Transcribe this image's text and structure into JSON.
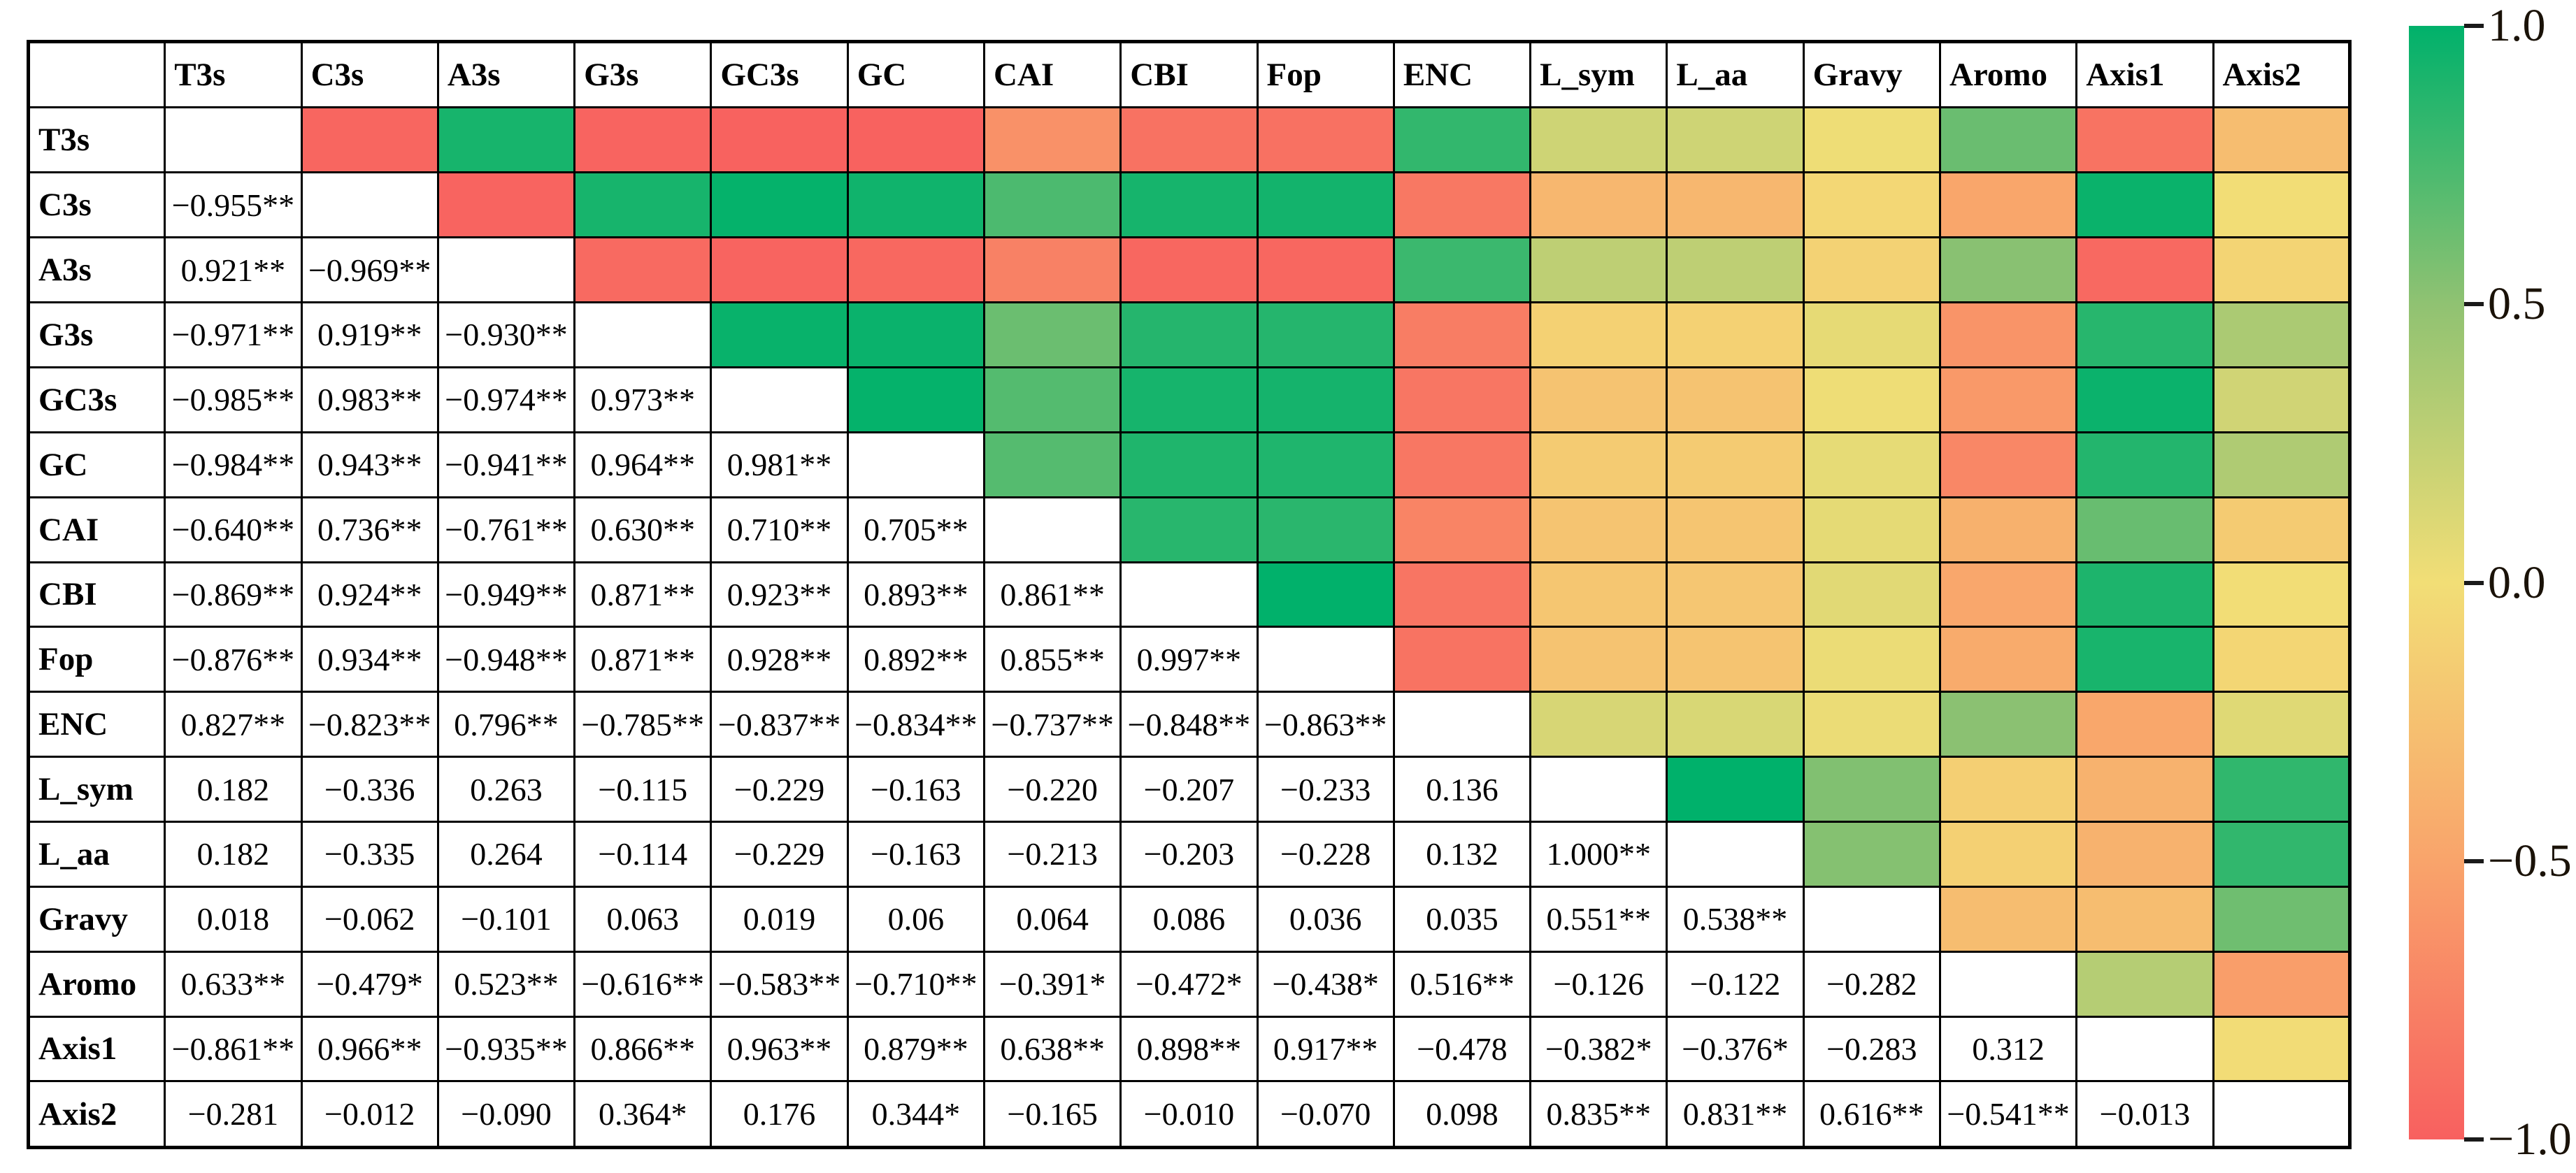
{
  "figure": {
    "background": "#ffffff"
  },
  "chart_data": {
    "type": "heatmap",
    "title": "",
    "description_layout": "correlation matrix: lower triangle numeric labels, upper triangle color-coded, colorbar on right",
    "variables": [
      "T3s",
      "C3s",
      "A3s",
      "G3s",
      "GC3s",
      "GC",
      "CAI",
      "CBI",
      "Fop",
      "ENC",
      "L_sym",
      "L_aa",
      "Gravy",
      "Aromo",
      "Axis1",
      "Axis2"
    ],
    "lower_triangle": [
      [],
      [
        "−0.955**"
      ],
      [
        "0.921**",
        "−0.969**"
      ],
      [
        "−0.971**",
        "0.919**",
        "−0.930**"
      ],
      [
        "−0.985**",
        "0.983**",
        "−0.974**",
        "0.973**"
      ],
      [
        "−0.984**",
        "0.943**",
        "−0.941**",
        "0.964**",
        "0.981**"
      ],
      [
        "−0.640**",
        "0.736**",
        "−0.761**",
        "0.630**",
        "0.710**",
        "0.705**"
      ],
      [
        "−0.869**",
        "0.924**",
        "−0.949**",
        "0.871**",
        "0.923**",
        "0.893**",
        "0.861**"
      ],
      [
        "−0.876**",
        "0.934**",
        "−0.948**",
        "0.871**",
        "0.928**",
        "0.892**",
        "0.855**",
        "0.997**"
      ],
      [
        "0.827**",
        "−0.823**",
        "0.796**",
        "−0.785**",
        "−0.837**",
        "−0.834**",
        "−0.737**",
        "−0.848**",
        "−0.863**"
      ],
      [
        "0.182",
        "−0.336",
        "0.263",
        "−0.115",
        "−0.229",
        "−0.163",
        "−0.220",
        "−0.207",
        "−0.233",
        "0.136"
      ],
      [
        "0.182",
        "−0.335",
        "0.264",
        "−0.114",
        "−0.229",
        "−0.163",
        "−0.213",
        "−0.203",
        "−0.228",
        "0.132",
        "1.000**"
      ],
      [
        "0.018",
        "−0.062",
        "−0.101",
        "0.063",
        "0.019",
        "0.06",
        "0.064",
        "0.086",
        "0.036",
        "0.035",
        "0.551**",
        "0.538**"
      ],
      [
        "0.633**",
        "−0.479*",
        "0.523**",
        "−0.616**",
        "−0.583**",
        "−0.710**",
        "−0.391*",
        "−0.472*",
        "−0.438*",
        "0.516**",
        "−0.126",
        "−0.122",
        "−0.282"
      ],
      [
        "−0.861**",
        "0.966**",
        "−0.935**",
        "0.866**",
        "0.963**",
        "0.879**",
        "0.638**",
        "0.898**",
        "0.917**",
        "−0.478",
        "−0.382*",
        "−0.376*",
        "−0.283",
        "0.312"
      ],
      [
        "−0.281",
        "−0.012",
        "−0.090",
        "0.364*",
        "0.176",
        "0.344*",
        "−0.165",
        "−0.010",
        "−0.070",
        "0.098",
        "0.835**",
        "0.831**",
        "0.616**",
        "−0.541**",
        "−0.013"
      ]
    ],
    "colorbar": {
      "min": -1,
      "max": 1,
      "ticks": [
        "1.0",
        "0.5",
        "0.0",
        "−0.5",
        "−1.0"
      ],
      "tick_values": [
        1.0,
        0.5,
        0.0,
        -0.5,
        -1.0
      ],
      "gradient_stops": [
        {
          "value": 1.0,
          "color": "#00B16B"
        },
        {
          "value": 0.5,
          "color": "#90C272"
        },
        {
          "value": 0.0,
          "color": "#F2DE76"
        },
        {
          "value": -0.5,
          "color": "#F9A46B"
        },
        {
          "value": -1.0,
          "color": "#F8605F"
        }
      ]
    }
  }
}
